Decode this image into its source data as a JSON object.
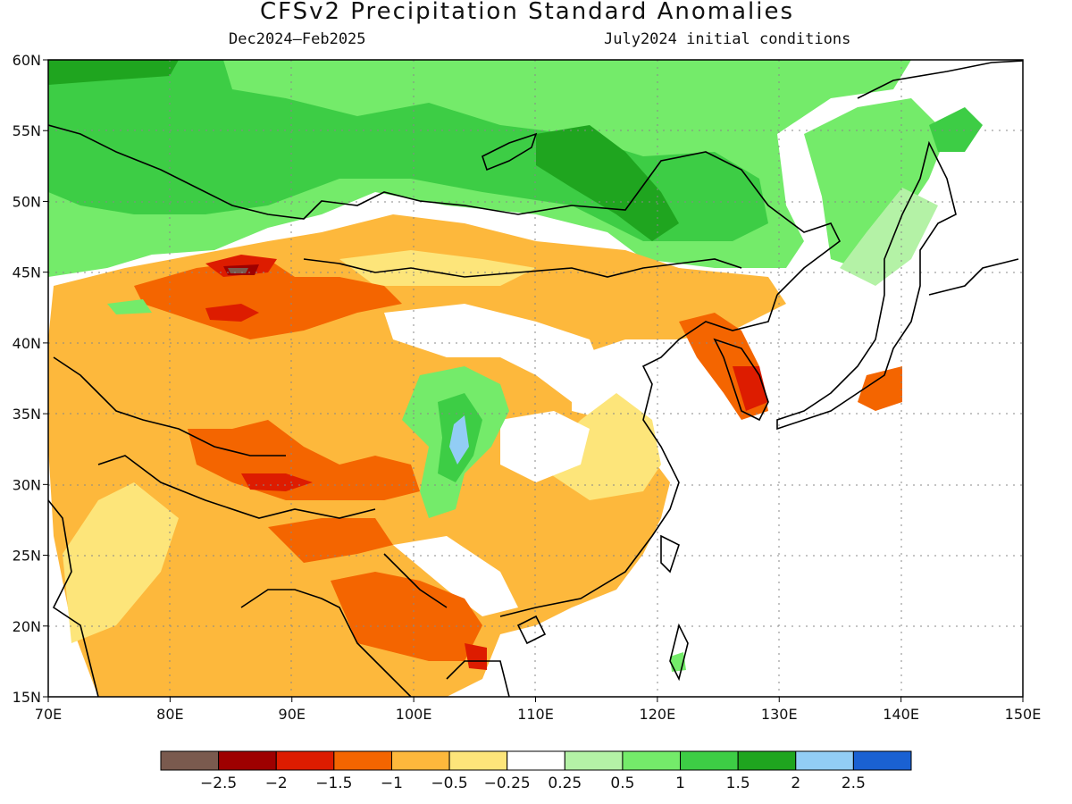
{
  "title": "CFSv2 Precipitation Standard Anomalies",
  "period": "Dec2024–Feb2025",
  "init": "July2024 initial conditions",
  "x_ticks": [
    "70E",
    "80E",
    "90E",
    "100E",
    "110E",
    "120E",
    "130E",
    "140E",
    "150E"
  ],
  "y_ticks": [
    "60N",
    "55N",
    "50N",
    "45N",
    "40N",
    "35N",
    "30N",
    "25N",
    "20N",
    "15N"
  ],
  "colorbar": {
    "colors": [
      "#7a5a4e",
      "#9e0000",
      "#dd1c00",
      "#f46500",
      "#fdb83c",
      "#fde57a",
      "#ffffff",
      "#b4f2a6",
      "#74eb6a",
      "#3dcd45",
      "#1fa51f",
      "#92cdf5",
      "#1a61d2"
    ],
    "labels": [
      "−2.5",
      "−2",
      "−1.5",
      "−1",
      "−0.5",
      "−0.25",
      "0.25",
      "0.5",
      "1",
      "1.5",
      "2",
      "2.5"
    ]
  },
  "regions": [
    {
      "name": "green-band-siberia",
      "color": "#74eb6a"
    },
    {
      "name": "dark-green-siberia",
      "color": "#3dcd45"
    },
    {
      "name": "core-green-baikal",
      "color": "#1fa51f"
    },
    {
      "name": "orange-central-asia",
      "color": "#fdb83c"
    },
    {
      "name": "deep-orange-tarim",
      "color": "#f46500"
    },
    {
      "name": "red-spots",
      "color": "#dd1c00"
    },
    {
      "name": "green-sichuan",
      "color": "#3dcd45"
    },
    {
      "name": "blue-sichuan",
      "color": "#92cdf5"
    },
    {
      "name": "yellow-south-china",
      "color": "#fde57a"
    }
  ]
}
